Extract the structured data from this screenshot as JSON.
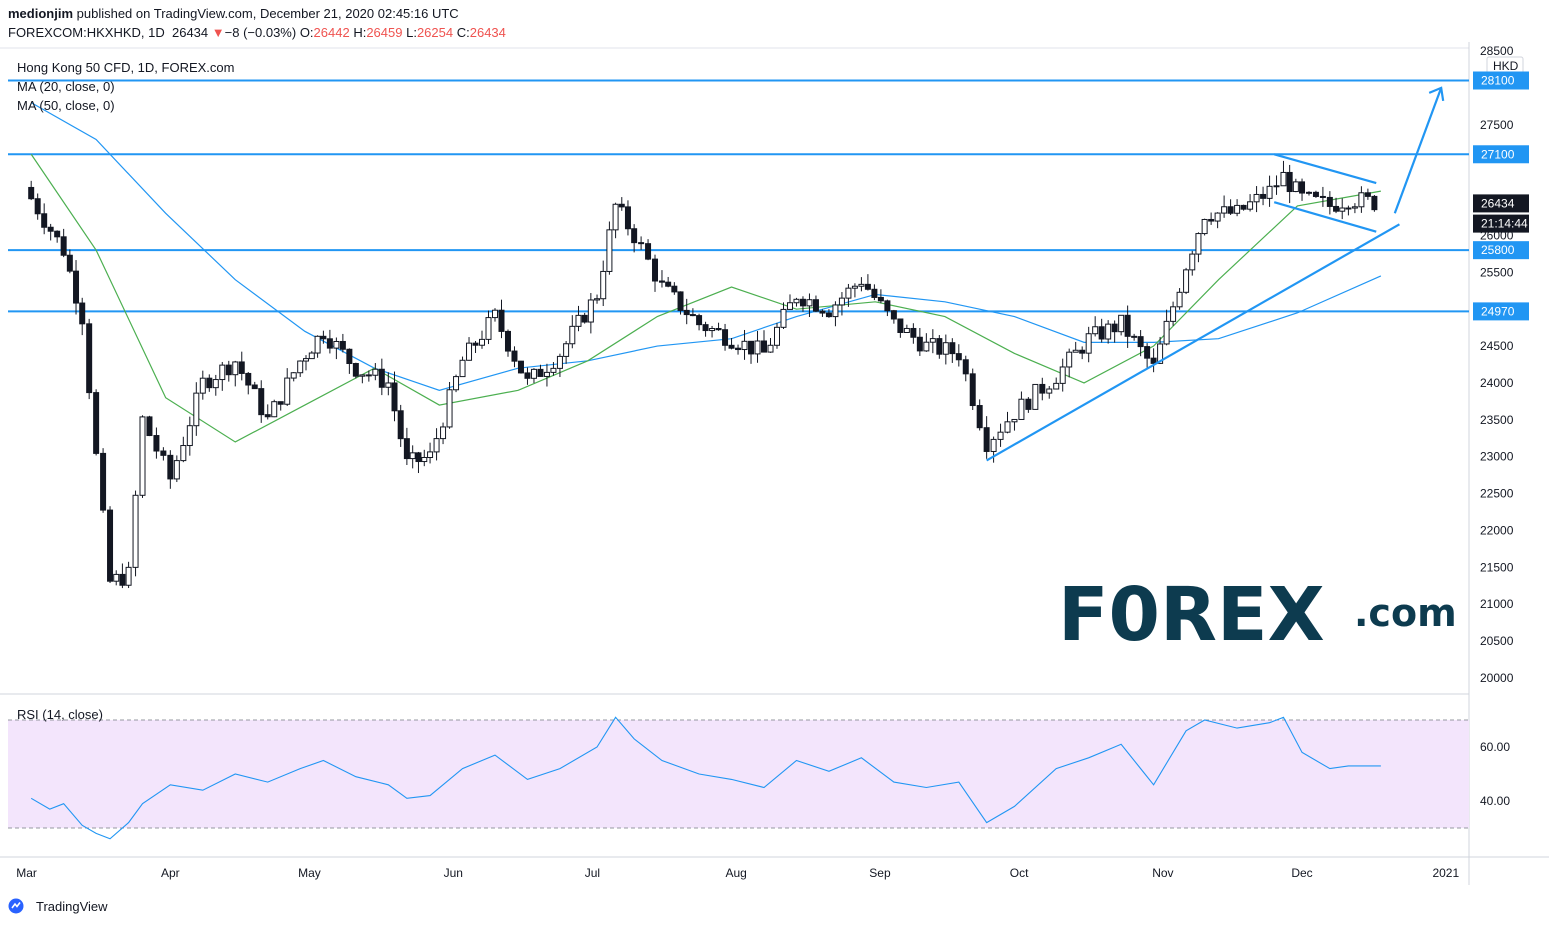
{
  "header": {
    "author": "medionjim",
    "published_text": " published on TradingView.com, December 21, 2020 02:45:16 UTC",
    "symbol": "FOREXCOM:HKXHKD, 1D",
    "last": "26434",
    "change_arrow": "▼",
    "change": "−8 (−0.03%)",
    "o_label": "O:",
    "o_value": "26442",
    "h_label": "H:",
    "h_value": "26459",
    "l_label": "L:",
    "l_value": "26254",
    "c_label": "C:",
    "c_value": "26434"
  },
  "legend": {
    "title": "Hong Kong 50 CFD, 1D, FOREX.com",
    "ma20": "MA (20, close, 0)",
    "ma50": "MA (50, close, 0)",
    "rsi": "RSI (14, close)"
  },
  "price_axis": {
    "currency": "HKD",
    "ticks": [
      "28500",
      "28000",
      "27500",
      "27000",
      "26500",
      "26000",
      "25500",
      "25000",
      "24500",
      "24000",
      "23500",
      "23000",
      "22500",
      "22000",
      "21500",
      "21000",
      "20500",
      "20000"
    ],
    "tags": [
      {
        "label": "28100",
        "value": 28100
      },
      {
        "label": "27100",
        "value": 27100
      },
      {
        "label": "26434",
        "value": 26434
      },
      {
        "label": "21:14:44",
        "value": 26160
      },
      {
        "label": "25800",
        "value": 25800
      },
      {
        "label": "24970",
        "value": 24970
      }
    ]
  },
  "rsi_axis": {
    "ticks": [
      "60.00",
      "40.00"
    ]
  },
  "time_axis": {
    "ticks": [
      "Mar",
      "Apr",
      "May",
      "Jun",
      "Jul",
      "Aug",
      "Sep",
      "Oct",
      "Nov",
      "Dec",
      "2021"
    ]
  },
  "brand": {
    "logo_text": "F0REX",
    "logo_suffix": ".com"
  },
  "footer": {
    "tradingview": "TradingView"
  },
  "colors": {
    "hline": "#2196f3",
    "ma20": "#4caf50",
    "ma50": "#2196f3",
    "rsi_line": "#2196f3",
    "rsi_band": "#f3e5fc",
    "brand_dark": "#0d3b4f",
    "brand_green": "#2ecc71"
  },
  "chart_data": {
    "type": "candlestick",
    "title": "Hong Kong 50 CFD, 1D, FOREX.com",
    "ylim": [
      19700,
      28600
    ],
    "horizontal_levels": [
      28100,
      27100,
      25800,
      24970
    ],
    "trendlines": [
      {
        "from": [
          "2020-09-24",
          22950
        ],
        "to": [
          "2020-12-22",
          26150
        ]
      },
      {
        "from": [
          "2020-11-25",
          27100
        ],
        "to": [
          "2020-12-17",
          26710
        ]
      },
      {
        "from": [
          "2020-11-25",
          26450
        ],
        "to": [
          "2020-12-17",
          26050
        ]
      }
    ],
    "projection_arrow": {
      "from": [
        "2020-12-21",
        26300
      ],
      "to": [
        "2020-12-31",
        28000
      ]
    },
    "ohlc_points": [
      {
        "x": "2020-03-02",
        "close": 26500
      },
      {
        "x": "2020-03-09",
        "close": 25800
      },
      {
        "x": "2020-03-13",
        "close": 24900
      },
      {
        "x": "2020-03-16",
        "close": 23000
      },
      {
        "x": "2020-03-19",
        "close": 21300
      },
      {
        "x": "2020-03-23",
        "close": 21400
      },
      {
        "x": "2020-03-26",
        "close": 23500
      },
      {
        "x": "2020-04-01",
        "close": 22700
      },
      {
        "x": "2020-04-08",
        "close": 24000
      },
      {
        "x": "2020-04-15",
        "close": 24300
      },
      {
        "x": "2020-04-22",
        "close": 23500
      },
      {
        "x": "2020-04-29",
        "close": 24300
      },
      {
        "x": "2020-05-04",
        "close": 24700
      },
      {
        "x": "2020-05-11",
        "close": 24200
      },
      {
        "x": "2020-05-18",
        "close": 24000
      },
      {
        "x": "2020-05-22",
        "close": 22900
      },
      {
        "x": "2020-05-27",
        "close": 23000
      },
      {
        "x": "2020-06-03",
        "close": 24300
      },
      {
        "x": "2020-06-10",
        "close": 24900
      },
      {
        "x": "2020-06-17",
        "close": 24000
      },
      {
        "x": "2020-06-24",
        "close": 24400
      },
      {
        "x": "2020-07-02",
        "close": 25200
      },
      {
        "x": "2020-07-06",
        "close": 26400
      },
      {
        "x": "2020-07-10",
        "close": 26000
      },
      {
        "x": "2020-07-16",
        "close": 25300
      },
      {
        "x": "2020-07-24",
        "close": 24800
      },
      {
        "x": "2020-07-31",
        "close": 24600
      },
      {
        "x": "2020-08-07",
        "close": 24400
      },
      {
        "x": "2020-08-14",
        "close": 25200
      },
      {
        "x": "2020-08-21",
        "close": 25000
      },
      {
        "x": "2020-08-28",
        "close": 25400
      },
      {
        "x": "2020-09-04",
        "close": 24800
      },
      {
        "x": "2020-09-11",
        "close": 24500
      },
      {
        "x": "2020-09-18",
        "close": 24400
      },
      {
        "x": "2020-09-24",
        "close": 23200
      },
      {
        "x": "2020-09-30",
        "close": 23600
      },
      {
        "x": "2020-10-09",
        "close": 24100
      },
      {
        "x": "2020-10-16",
        "close": 24600
      },
      {
        "x": "2020-10-23",
        "close": 24800
      },
      {
        "x": "2020-10-30",
        "close": 24200
      },
      {
        "x": "2020-11-06",
        "close": 25600
      },
      {
        "x": "2020-11-10",
        "close": 26300
      },
      {
        "x": "2020-11-17",
        "close": 26300
      },
      {
        "x": "2020-11-24",
        "close": 26600
      },
      {
        "x": "2020-11-27",
        "close": 26800
      },
      {
        "x": "2020-12-01",
        "close": 26500
      },
      {
        "x": "2020-12-07",
        "close": 26400
      },
      {
        "x": "2020-12-11",
        "close": 26500
      },
      {
        "x": "2020-12-18",
        "close": 26434
      }
    ],
    "ma20_points": [
      {
        "x": "2020-03-02",
        "y": 27100
      },
      {
        "x": "2020-03-16",
        "y": 25800
      },
      {
        "x": "2020-03-31",
        "y": 23800
      },
      {
        "x": "2020-04-15",
        "y": 23200
      },
      {
        "x": "2020-04-30",
        "y": 23700
      },
      {
        "x": "2020-05-15",
        "y": 24200
      },
      {
        "x": "2020-05-29",
        "y": 23700
      },
      {
        "x": "2020-06-15",
        "y": 23900
      },
      {
        "x": "2020-06-30",
        "y": 24300
      },
      {
        "x": "2020-07-15",
        "y": 24900
      },
      {
        "x": "2020-07-31",
        "y": 25300
      },
      {
        "x": "2020-08-14",
        "y": 25000
      },
      {
        "x": "2020-08-31",
        "y": 25100
      },
      {
        "x": "2020-09-15",
        "y": 24900
      },
      {
        "x": "2020-09-30",
        "y": 24400
      },
      {
        "x": "2020-10-15",
        "y": 24000
      },
      {
        "x": "2020-10-30",
        "y": 24500
      },
      {
        "x": "2020-11-13",
        "y": 25400
      },
      {
        "x": "2020-11-30",
        "y": 26400
      },
      {
        "x": "2020-12-18",
        "y": 26600
      }
    ],
    "ma50_points": [
      {
        "x": "2020-03-02",
        "y": 27800
      },
      {
        "x": "2020-03-16",
        "y": 27300
      },
      {
        "x": "2020-03-31",
        "y": 26300
      },
      {
        "x": "2020-04-15",
        "y": 25400
      },
      {
        "x": "2020-04-30",
        "y": 24700
      },
      {
        "x": "2020-05-15",
        "y": 24200
      },
      {
        "x": "2020-05-29",
        "y": 23900
      },
      {
        "x": "2020-06-15",
        "y": 24200
      },
      {
        "x": "2020-06-30",
        "y": 24300
      },
      {
        "x": "2020-07-15",
        "y": 24500
      },
      {
        "x": "2020-07-31",
        "y": 24600
      },
      {
        "x": "2020-08-14",
        "y": 24900
      },
      {
        "x": "2020-08-31",
        "y": 25200
      },
      {
        "x": "2020-09-15",
        "y": 25100
      },
      {
        "x": "2020-09-30",
        "y": 24900
      },
      {
        "x": "2020-10-15",
        "y": 24550
      },
      {
        "x": "2020-10-30",
        "y": 24550
      },
      {
        "x": "2020-11-13",
        "y": 24600
      },
      {
        "x": "2020-11-30",
        "y": 24950
      },
      {
        "x": "2020-12-18",
        "y": 25450
      }
    ],
    "rsi": {
      "title": "RSI (14, close)",
      "ylim": [
        20,
        80
      ],
      "band": [
        30,
        70
      ],
      "points": [
        {
          "x": "2020-03-02",
          "y": 41
        },
        {
          "x": "2020-03-06",
          "y": 37
        },
        {
          "x": "2020-03-09",
          "y": 39
        },
        {
          "x": "2020-03-13",
          "y": 31
        },
        {
          "x": "2020-03-16",
          "y": 28
        },
        {
          "x": "2020-03-19",
          "y": 26
        },
        {
          "x": "2020-03-23",
          "y": 32
        },
        {
          "x": "2020-03-26",
          "y": 39
        },
        {
          "x": "2020-04-01",
          "y": 46
        },
        {
          "x": "2020-04-08",
          "y": 44
        },
        {
          "x": "2020-04-15",
          "y": 50
        },
        {
          "x": "2020-04-22",
          "y": 47
        },
        {
          "x": "2020-04-29",
          "y": 52
        },
        {
          "x": "2020-05-04",
          "y": 55
        },
        {
          "x": "2020-05-11",
          "y": 49
        },
        {
          "x": "2020-05-18",
          "y": 46
        },
        {
          "x": "2020-05-22",
          "y": 41
        },
        {
          "x": "2020-05-27",
          "y": 42
        },
        {
          "x": "2020-06-03",
          "y": 52
        },
        {
          "x": "2020-06-10",
          "y": 57
        },
        {
          "x": "2020-06-17",
          "y": 48
        },
        {
          "x": "2020-06-24",
          "y": 52
        },
        {
          "x": "2020-07-02",
          "y": 60
        },
        {
          "x": "2020-07-06",
          "y": 71
        },
        {
          "x": "2020-07-10",
          "y": 63
        },
        {
          "x": "2020-07-16",
          "y": 55
        },
        {
          "x": "2020-07-24",
          "y": 50
        },
        {
          "x": "2020-07-31",
          "y": 48
        },
        {
          "x": "2020-08-07",
          "y": 45
        },
        {
          "x": "2020-08-14",
          "y": 55
        },
        {
          "x": "2020-08-21",
          "y": 51
        },
        {
          "x": "2020-08-28",
          "y": 56
        },
        {
          "x": "2020-09-04",
          "y": 47
        },
        {
          "x": "2020-09-11",
          "y": 45
        },
        {
          "x": "2020-09-18",
          "y": 47
        },
        {
          "x": "2020-09-24",
          "y": 32
        },
        {
          "x": "2020-09-30",
          "y": 38
        },
        {
          "x": "2020-10-09",
          "y": 52
        },
        {
          "x": "2020-10-16",
          "y": 56
        },
        {
          "x": "2020-10-23",
          "y": 61
        },
        {
          "x": "2020-10-30",
          "y": 46
        },
        {
          "x": "2020-11-06",
          "y": 66
        },
        {
          "x": "2020-11-10",
          "y": 70
        },
        {
          "x": "2020-11-17",
          "y": 67
        },
        {
          "x": "2020-11-24",
          "y": 69
        },
        {
          "x": "2020-11-27",
          "y": 71
        },
        {
          "x": "2020-12-01",
          "y": 58
        },
        {
          "x": "2020-12-07",
          "y": 52
        },
        {
          "x": "2020-12-11",
          "y": 53
        },
        {
          "x": "2020-12-18",
          "y": 53
        }
      ]
    },
    "time_ticks": [
      {
        "label": "Mar",
        "x": "2020-03-01"
      },
      {
        "label": "Apr",
        "x": "2020-04-01"
      },
      {
        "label": "May",
        "x": "2020-05-01"
      },
      {
        "label": "Jun",
        "x": "2020-06-01"
      },
      {
        "label": "Jul",
        "x": "2020-07-01"
      },
      {
        "label": "Aug",
        "x": "2020-08-01"
      },
      {
        "label": "Sep",
        "x": "2020-09-01"
      },
      {
        "label": "Oct",
        "x": "2020-10-01"
      },
      {
        "label": "Nov",
        "x": "2020-11-01"
      },
      {
        "label": "Dec",
        "x": "2020-12-01"
      },
      {
        "label": "2021",
        "x": "2021-01-01"
      }
    ]
  }
}
